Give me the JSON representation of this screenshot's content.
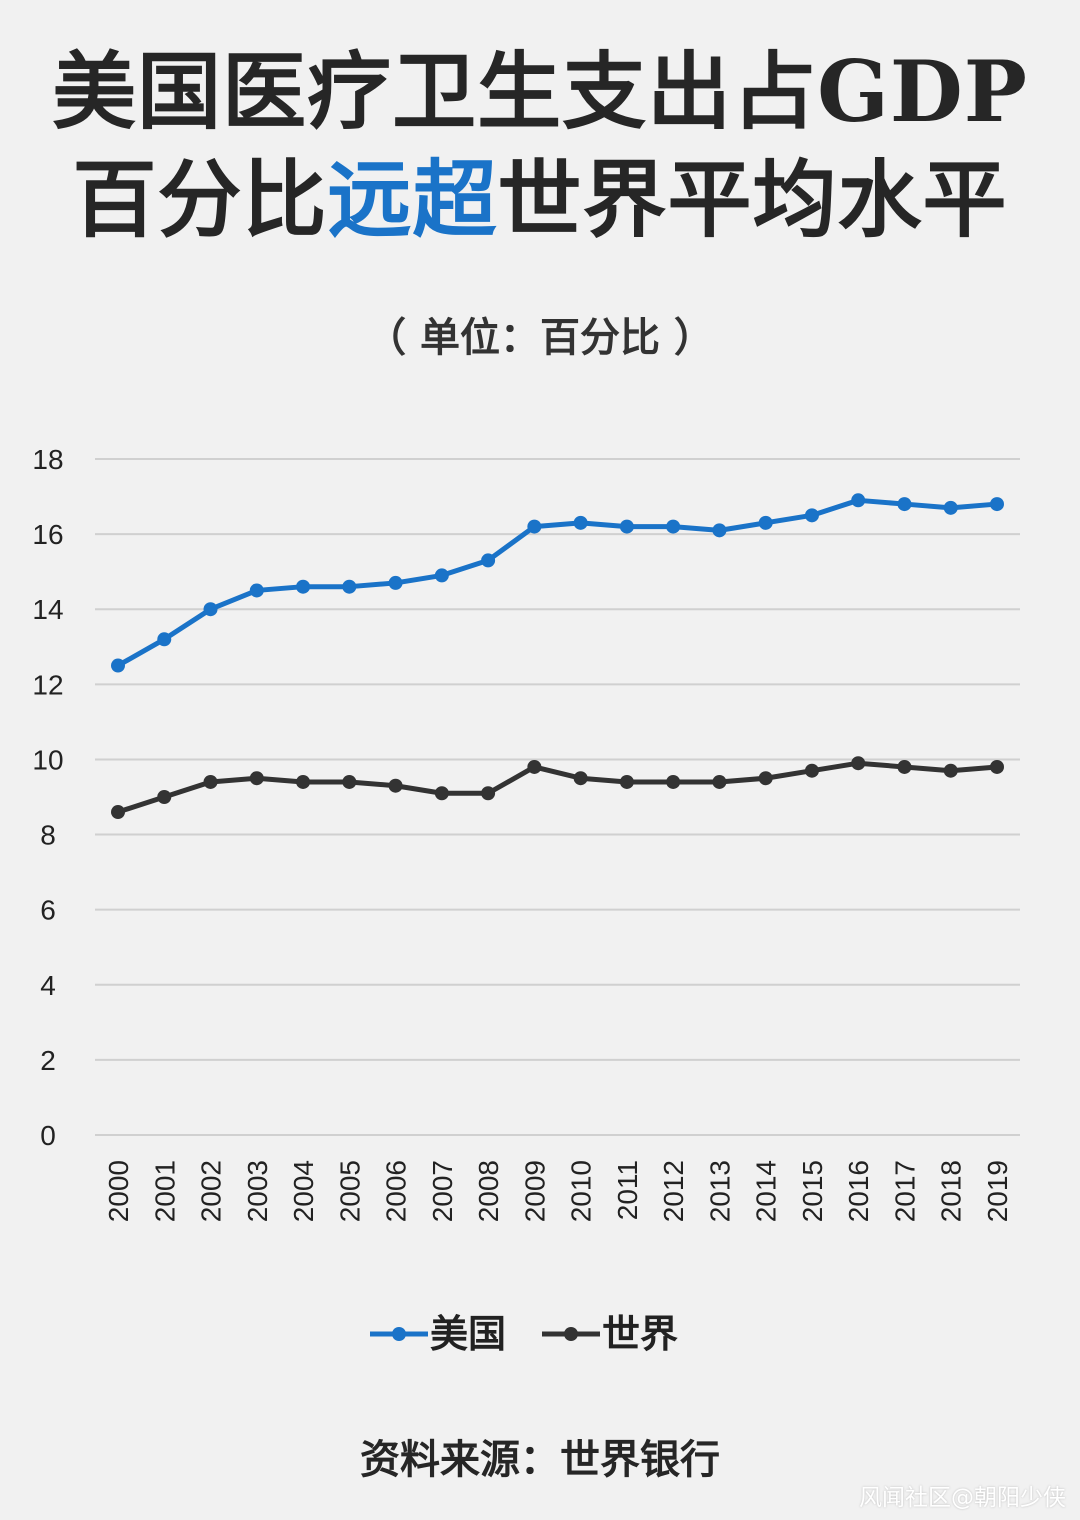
{
  "title_line1": "美国医疗卫生支出占GDP",
  "title_line2_pre": "百分比",
  "title_line2_accent": "远超",
  "title_line2_post": "世界平均水平",
  "unit_label": "（ 单位：百分比 ）",
  "source": "资料来源：世界银行",
  "watermark": "风闻社区@朝阳少侠",
  "colors": {
    "usa": "#1a73c8",
    "world": "#333333",
    "accent": "#1a73c8",
    "grid": "#d0d0d0"
  },
  "chart_data": {
    "type": "line",
    "x": [
      "2000",
      "2001",
      "2002",
      "2003",
      "2004",
      "2005",
      "2006",
      "2007",
      "2008",
      "2009",
      "2010",
      "2011",
      "2012",
      "2013",
      "2014",
      "2015",
      "2016",
      "2017",
      "2018",
      "2019"
    ],
    "series": [
      {
        "name": "美国",
        "values": [
          12.5,
          13.2,
          14.0,
          14.5,
          14.6,
          14.6,
          14.7,
          14.9,
          15.3,
          16.2,
          16.3,
          16.2,
          16.2,
          16.1,
          16.3,
          16.5,
          16.9,
          16.8,
          16.7,
          16.8
        ]
      },
      {
        "name": "世界",
        "values": [
          8.6,
          9.0,
          9.4,
          9.5,
          9.4,
          9.4,
          9.3,
          9.1,
          9.1,
          9.8,
          9.5,
          9.4,
          9.4,
          9.4,
          9.5,
          9.7,
          9.9,
          9.8,
          9.7,
          9.8
        ]
      }
    ],
    "yticks": [
      0,
      2,
      4,
      6,
      8,
      10,
      12,
      14,
      16,
      18
    ],
    "ylim": [
      0,
      18
    ],
    "grid": true,
    "legend_position": "bottom-center"
  }
}
